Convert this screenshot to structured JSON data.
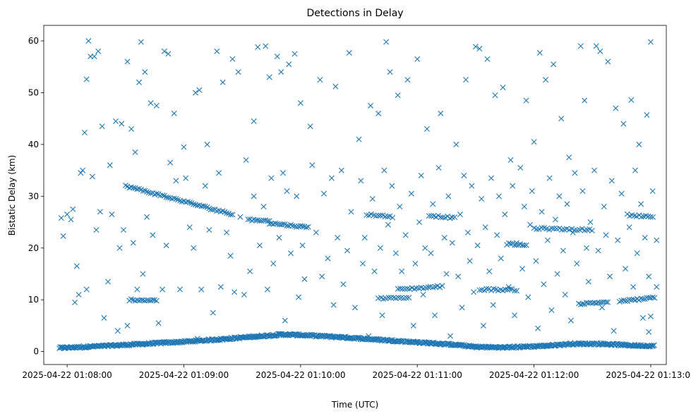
{
  "chart_data": {
    "type": "scatter",
    "title": "Detections in Delay",
    "xlabel": "Time (UTC)",
    "ylabel": "Bistatic Delay (km)",
    "marker": "x",
    "color": "#1f77b4",
    "x_unit": "seconds after 2025-04-22 01:08:00 UTC",
    "xlim": [
      -12,
      308
    ],
    "ylim": [
      -2.5,
      63
    ],
    "x_ticks": [
      {
        "value": 0,
        "label": "2025-04-22 01:08:00"
      },
      {
        "value": 60,
        "label": "2025-04-22 01:09:00"
      },
      {
        "value": 120,
        "label": "2025-04-22 01:10:00"
      },
      {
        "value": 180,
        "label": "2025-04-22 01:11:00"
      },
      {
        "value": 240,
        "label": "2025-04-22 01:12:00"
      },
      {
        "value": 300,
        "label": "2025-04-22 01:13:00"
      }
    ],
    "y_ticks": [
      0,
      10,
      20,
      30,
      40,
      50,
      60
    ],
    "tracks": [
      {
        "name": "near-zero clutter",
        "points": [
          [
            -4,
            0.7
          ],
          [
            20,
            1.1
          ],
          [
            40,
            1.5
          ],
          [
            60,
            1.9
          ],
          [
            80,
            2.4
          ],
          [
            100,
            3.0
          ],
          [
            110,
            3.3
          ],
          [
            120,
            3.2
          ],
          [
            140,
            2.8
          ],
          [
            160,
            2.3
          ],
          [
            180,
            1.8
          ],
          [
            200,
            1.3
          ],
          [
            210,
            0.9
          ],
          [
            225,
            0.8
          ],
          [
            245,
            1.1
          ],
          [
            260,
            1.5
          ],
          [
            275,
            1.5
          ],
          [
            290,
            1.2
          ],
          [
            302,
            1.1
          ]
        ],
        "step": 0.45
      },
      {
        "name": "track A",
        "points": [
          [
            30,
            32
          ],
          [
            85,
            26.5
          ]
        ],
        "step": 1.0
      },
      {
        "name": "track B",
        "points": [
          [
            104,
            24.8
          ],
          [
            124,
            24.0
          ]
        ],
        "step": 1.0
      },
      {
        "name": "track C",
        "points": [
          [
            154,
            26.5
          ],
          [
            168,
            26.0
          ]
        ],
        "step": 1.2
      },
      {
        "name": "track D",
        "points": [
          [
            186,
            26.3
          ],
          [
            200,
            25.8
          ]
        ],
        "step": 1.2
      },
      {
        "name": "track E",
        "points": [
          [
            226,
            20.8
          ],
          [
            236,
            20.5
          ]
        ],
        "step": 1.0
      },
      {
        "name": "track F",
        "points": [
          [
            240,
            23.8
          ],
          [
            270,
            23.5
          ]
        ],
        "step": 1.3
      },
      {
        "name": "track G",
        "points": [
          [
            288,
            26.4
          ],
          [
            302,
            26.0
          ]
        ],
        "step": 1.2
      },
      {
        "name": "track H",
        "points": [
          [
            170,
            12.0
          ],
          [
            193,
            12.6
          ]
        ],
        "step": 1.2
      },
      {
        "name": "track I",
        "points": [
          [
            212,
            12.0
          ],
          [
            232,
            11.9
          ]
        ],
        "step": 1.2
      },
      {
        "name": "track J",
        "points": [
          [
            263,
            9.2
          ],
          [
            278,
            9.6
          ]
        ],
        "step": 1.0
      },
      {
        "name": "track K",
        "points": [
          [
            284,
            9.7
          ],
          [
            302,
            10.4
          ]
        ],
        "step": 1.0
      },
      {
        "name": "track L",
        "points": [
          [
            93,
            25.5
          ],
          [
            104,
            25.2
          ]
        ],
        "step": 1.0
      },
      {
        "name": "track M",
        "points": [
          [
            160,
            10.3
          ],
          [
            176,
            10.3
          ]
        ],
        "step": 1.3
      },
      {
        "name": "track N",
        "points": [
          [
            32,
            10.0
          ],
          [
            46,
            9.9
          ]
        ],
        "step": 1.0
      }
    ],
    "scattered": [
      [
        3,
        27.5
      ],
      [
        5,
        16.5
      ],
      [
        7,
        34.5
      ],
      [
        9,
        42.3
      ],
      [
        10,
        52.6
      ],
      [
        11,
        60
      ],
      [
        12,
        57
      ],
      [
        14,
        57
      ],
      [
        16,
        58
      ],
      [
        18,
        43.5
      ],
      [
        22,
        36
      ],
      [
        25,
        44.5
      ],
      [
        28,
        44
      ],
      [
        31,
        56
      ],
      [
        33,
        43
      ],
      [
        35,
        38.5
      ],
      [
        37,
        52
      ],
      [
        38,
        59.8
      ],
      [
        40,
        54
      ],
      [
        43,
        48
      ],
      [
        46,
        47.5
      ],
      [
        50,
        58
      ],
      [
        52,
        57.5
      ],
      [
        55,
        46
      ],
      [
        60,
        39.5
      ],
      [
        66,
        50
      ],
      [
        68,
        50.5
      ],
      [
        72,
        40
      ],
      [
        77,
        58
      ],
      [
        80,
        52
      ],
      [
        85,
        56.5
      ],
      [
        88,
        54
      ],
      [
        96,
        44.5
      ],
      [
        98,
        58.8
      ],
      [
        102,
        59
      ],
      [
        104,
        53
      ],
      [
        108,
        57
      ],
      [
        110,
        54
      ],
      [
        114,
        55.5
      ],
      [
        117,
        57.5
      ],
      [
        120,
        48
      ],
      [
        125,
        43.5
      ],
      [
        130,
        52.5
      ],
      [
        138,
        51.2
      ],
      [
        145,
        57.7
      ],
      [
        150,
        41
      ],
      [
        156,
        47.5
      ],
      [
        160,
        46
      ],
      [
        164,
        59.8
      ],
      [
        166,
        54
      ],
      [
        170,
        49.5
      ],
      [
        175,
        52.5
      ],
      [
        180,
        56.5
      ],
      [
        185,
        43
      ],
      [
        192,
        46
      ],
      [
        200,
        40
      ],
      [
        205,
        52.5
      ],
      [
        210,
        58.9
      ],
      [
        212,
        58.5
      ],
      [
        216,
        56.5
      ],
      [
        220,
        49.5
      ],
      [
        224,
        51
      ],
      [
        228,
        37
      ],
      [
        236,
        48.5
      ],
      [
        240,
        40.5
      ],
      [
        243,
        57.7
      ],
      [
        246,
        52.5
      ],
      [
        250,
        55.5
      ],
      [
        254,
        45
      ],
      [
        258,
        37.5
      ],
      [
        264,
        59
      ],
      [
        266,
        48.5
      ],
      [
        272,
        59
      ],
      [
        274,
        58
      ],
      [
        278,
        56
      ],
      [
        282,
        47
      ],
      [
        286,
        44
      ],
      [
        290,
        48.6
      ],
      [
        294,
        40
      ],
      [
        298,
        45.7
      ],
      [
        300,
        59.8
      ],
      [
        -3,
        25.8
      ],
      [
        -2,
        22.3
      ],
      [
        0,
        26.5
      ],
      [
        2,
        25.5
      ],
      [
        4,
        9.5
      ],
      [
        6,
        11
      ],
      [
        8,
        35
      ],
      [
        10,
        12
      ],
      [
        13,
        33.8
      ],
      [
        15,
        23.5
      ],
      [
        17,
        27
      ],
      [
        19,
        6.5
      ],
      [
        21,
        13.5
      ],
      [
        23,
        26.5
      ],
      [
        26,
        4
      ],
      [
        27,
        20
      ],
      [
        29,
        23.5
      ],
      [
        31,
        5
      ],
      [
        34,
        21
      ],
      [
        36,
        12
      ],
      [
        39,
        15
      ],
      [
        41,
        26
      ],
      [
        44,
        22.5
      ],
      [
        47,
        5.5
      ],
      [
        49,
        12
      ],
      [
        51,
        20.5
      ],
      [
        53,
        36.5
      ],
      [
        56,
        33
      ],
      [
        58,
        12
      ],
      [
        61,
        33.5
      ],
      [
        63,
        24
      ],
      [
        65,
        20
      ],
      [
        67,
        2.5
      ],
      [
        69,
        12
      ],
      [
        71,
        32
      ],
      [
        73,
        23.5
      ],
      [
        75,
        7.5
      ],
      [
        78,
        34.5
      ],
      [
        79,
        12.5
      ],
      [
        82,
        23
      ],
      [
        84,
        18.5
      ],
      [
        86,
        11.5
      ],
      [
        89,
        26
      ],
      [
        91,
        11
      ],
      [
        92,
        37
      ],
      [
        94,
        15.5
      ],
      [
        96,
        30
      ],
      [
        99,
        20.5
      ],
      [
        101,
        28
      ],
      [
        103,
        12
      ],
      [
        105,
        33.5
      ],
      [
        106,
        17
      ],
      [
        109,
        22
      ],
      [
        111,
        34.5
      ],
      [
        112,
        6
      ],
      [
        113,
        31
      ],
      [
        115,
        19
      ],
      [
        118,
        30
      ],
      [
        119,
        10.5
      ],
      [
        121,
        20.5
      ],
      [
        122,
        14
      ],
      [
        126,
        36
      ],
      [
        128,
        23
      ],
      [
        131,
        14.5
      ],
      [
        132,
        30.5
      ],
      [
        134,
        18
      ],
      [
        136,
        33.5
      ],
      [
        137,
        9
      ],
      [
        139,
        22
      ],
      [
        141,
        35
      ],
      [
        142,
        13
      ],
      [
        144,
        19.5
      ],
      [
        146,
        27
      ],
      [
        148,
        8.5
      ],
      [
        151,
        33
      ],
      [
        152,
        17
      ],
      [
        153,
        22
      ],
      [
        155,
        3
      ],
      [
        157,
        29.5
      ],
      [
        158,
        15.5
      ],
      [
        161,
        20
      ],
      [
        162,
        7
      ],
      [
        163,
        35
      ],
      [
        165,
        24.5
      ],
      [
        167,
        32
      ],
      [
        169,
        19
      ],
      [
        171,
        28
      ],
      [
        172,
        15.5
      ],
      [
        174,
        22.5
      ],
      [
        177,
        30.5
      ],
      [
        178,
        5
      ],
      [
        179,
        17
      ],
      [
        181,
        25
      ],
      [
        182,
        34
      ],
      [
        183,
        11
      ],
      [
        184,
        20
      ],
      [
        187,
        19
      ],
      [
        188,
        28.5
      ],
      [
        189,
        7
      ],
      [
        191,
        35.5
      ],
      [
        194,
        22
      ],
      [
        195,
        15
      ],
      [
        196,
        30
      ],
      [
        197,
        3
      ],
      [
        198,
        21
      ],
      [
        201,
        14.5
      ],
      [
        202,
        26.5
      ],
      [
        203,
        8.5
      ],
      [
        204,
        34
      ],
      [
        206,
        23
      ],
      [
        207,
        17.5
      ],
      [
        208,
        32
      ],
      [
        209,
        11.5
      ],
      [
        211,
        20.5
      ],
      [
        213,
        29.5
      ],
      [
        214,
        5
      ],
      [
        215,
        24
      ],
      [
        217,
        15.5
      ],
      [
        218,
        33.5
      ],
      [
        219,
        9
      ],
      [
        221,
        22.5
      ],
      [
        222,
        30
      ],
      [
        223,
        18
      ],
      [
        225,
        26.5
      ],
      [
        227,
        12.5
      ],
      [
        229,
        32
      ],
      [
        230,
        7
      ],
      [
        231,
        21
      ],
      [
        233,
        35.5
      ],
      [
        234,
        16
      ],
      [
        235,
        28
      ],
      [
        237,
        10.5
      ],
      [
        238,
        24.5
      ],
      [
        239,
        31
      ],
      [
        241,
        17.5
      ],
      [
        242,
        4.5
      ],
      [
        244,
        27
      ],
      [
        245,
        13
      ],
      [
        247,
        21.5
      ],
      [
        248,
        33.5
      ],
      [
        249,
        8
      ],
      [
        251,
        25.5
      ],
      [
        252,
        15
      ],
      [
        253,
        30
      ],
      [
        255,
        19.5
      ],
      [
        256,
        11
      ],
      [
        257,
        28.5
      ],
      [
        259,
        6
      ],
      [
        260,
        23
      ],
      [
        261,
        34.5
      ],
      [
        262,
        17
      ],
      [
        265,
        31
      ],
      [
        267,
        20
      ],
      [
        268,
        13.5
      ],
      [
        269,
        25
      ],
      [
        271,
        35
      ],
      [
        273,
        19.5
      ],
      [
        275,
        8.5
      ],
      [
        276,
        28
      ],
      [
        277,
        22.5
      ],
      [
        279,
        14.5
      ],
      [
        280,
        33
      ],
      [
        281,
        4
      ],
      [
        283,
        21.5
      ],
      [
        285,
        30.5
      ],
      [
        287,
        16
      ],
      [
        289,
        24
      ],
      [
        291,
        12.5
      ],
      [
        292,
        35
      ],
      [
        293,
        19
      ],
      [
        295,
        28.5
      ],
      [
        296,
        6.5
      ],
      [
        297,
        22
      ],
      [
        299,
        14.5
      ],
      [
        301,
        31
      ],
      [
        303,
        21.5
      ],
      [
        303,
        12.5
      ],
      [
        300,
        6.8
      ],
      [
        299,
        3.8
      ]
    ]
  }
}
